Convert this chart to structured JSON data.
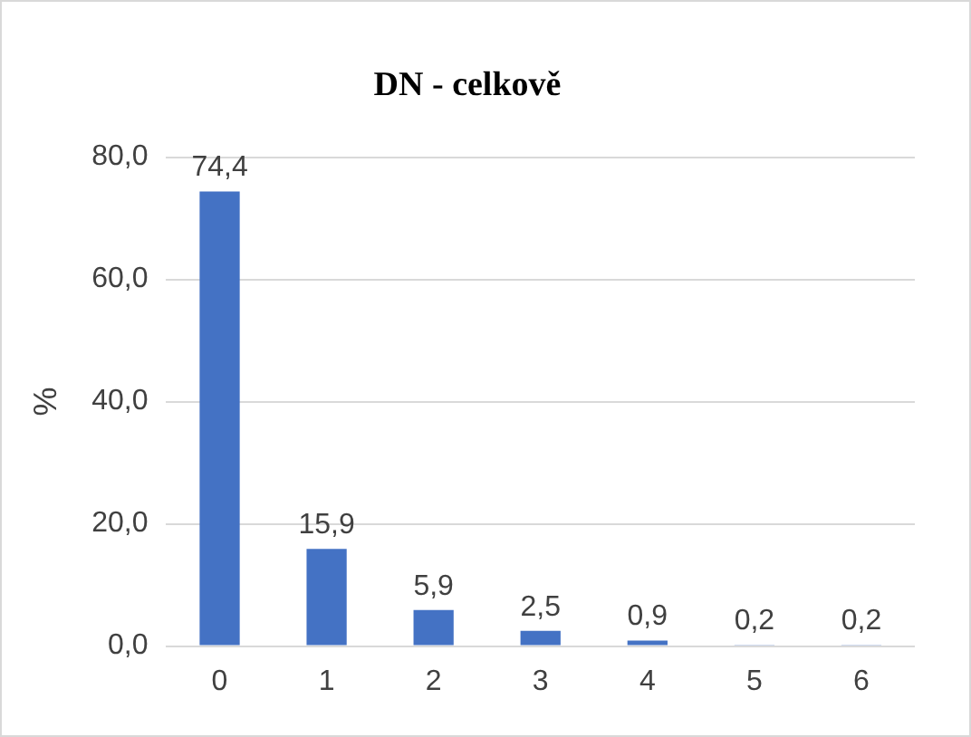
{
  "chart_data": {
    "type": "bar",
    "title": "DN - celkově",
    "ylabel": "%",
    "categories": [
      "0",
      "1",
      "2",
      "3",
      "4",
      "5",
      "6"
    ],
    "values": [
      74.4,
      15.9,
      5.9,
      2.5,
      0.9,
      0.2,
      0.2
    ],
    "value_labels": [
      "74,4",
      "15,9",
      "5,9",
      "2,5",
      "0,9",
      "0,2",
      "0,2"
    ],
    "color": "#4472c4",
    "ylim": [
      0,
      80
    ],
    "yticks": [
      {
        "value": 0,
        "label": "0,0"
      },
      {
        "value": 20,
        "label": "20,0"
      },
      {
        "value": 40,
        "label": "40,0"
      },
      {
        "value": 60,
        "label": "60,0"
      },
      {
        "value": 80,
        "label": "80,0"
      }
    ],
    "grid": "y",
    "legend": false
  }
}
